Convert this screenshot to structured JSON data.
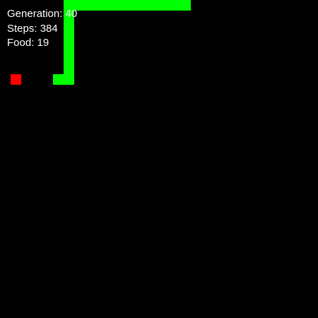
{
  "game": {
    "grid_cells": 30,
    "colors": {
      "background": "#000000",
      "snake": "#00ff00",
      "food": "#ff0000",
      "text": "#ffffff"
    },
    "snake": [
      [
        17,
        0
      ],
      [
        16,
        0
      ],
      [
        15,
        0
      ],
      [
        14,
        0
      ],
      [
        13,
        0
      ],
      [
        12,
        0
      ],
      [
        11,
        0
      ],
      [
        10,
        0
      ],
      [
        9,
        0
      ],
      [
        8,
        0
      ],
      [
        7,
        0
      ],
      [
        6,
        0
      ],
      [
        6,
        1
      ],
      [
        6,
        2
      ],
      [
        6,
        3
      ],
      [
        6,
        4
      ],
      [
        6,
        5
      ],
      [
        6,
        6
      ],
      [
        6,
        7
      ],
      [
        5,
        7
      ]
    ],
    "food": [
      1,
      7
    ]
  },
  "hud": {
    "generation_label": "Generation:",
    "generation_value": "40",
    "steps_label": "Steps:",
    "steps_value": "384",
    "food_label": "Food:",
    "food_value": "19"
  }
}
